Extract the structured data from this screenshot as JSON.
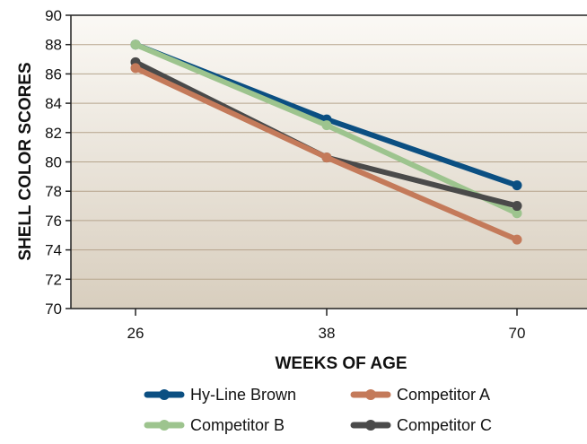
{
  "chart_data": {
    "type": "line",
    "title": "",
    "xlabel": "WEEKS OF AGE",
    "ylabel": "SHELL COLOR SCORES",
    "categories": [
      "26",
      "38",
      "70"
    ],
    "ylim": [
      70,
      90
    ],
    "y_ticks": [
      70,
      72,
      74,
      76,
      78,
      80,
      82,
      84,
      86,
      88,
      90
    ],
    "grid": "horizontal",
    "legend_placement": "bottom",
    "series": [
      {
        "name": "Hy-Line Brown",
        "color": "#0b4f82",
        "values": [
          88.0,
          82.9,
          78.4
        ]
      },
      {
        "name": "Competitor A",
        "color": "#c47a5a",
        "values": [
          86.4,
          80.3,
          74.7
        ]
      },
      {
        "name": "Competitor B",
        "color": "#9dc48e",
        "values": [
          88.0,
          82.5,
          76.5
        ]
      },
      {
        "name": "Competitor C",
        "color": "#4a4a4a",
        "values": [
          86.8,
          80.3,
          77.0
        ]
      }
    ],
    "draw_order": [
      0,
      2,
      3,
      1
    ]
  }
}
